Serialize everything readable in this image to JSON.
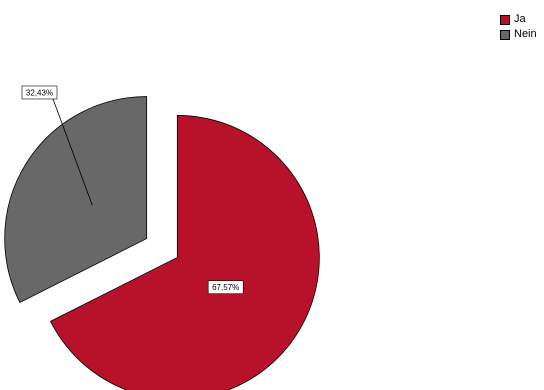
{
  "chart_data": {
    "type": "pie",
    "exploded": true,
    "legend_placement": "top-right",
    "slices": [
      {
        "name": "Ja",
        "value": 67.57,
        "label": "67,57%",
        "color": "#b8122a"
      },
      {
        "name": "Nein",
        "value": 32.43,
        "label": "32,43%",
        "color": "#686868"
      }
    ]
  }
}
